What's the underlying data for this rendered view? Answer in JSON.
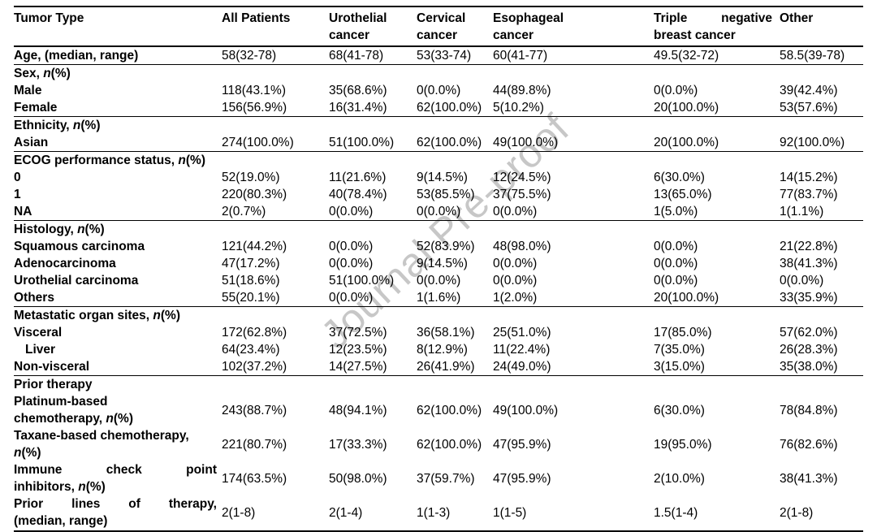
{
  "watermark": {
    "text": "Journal Pre-proof",
    "color": "#c7c7c7"
  },
  "table": {
    "columns": [
      {
        "label": "Tumor Type"
      },
      {
        "label": "All Patients"
      },
      {
        "label": "Urothelial\ncancer"
      },
      {
        "label": "Cervical\ncancer"
      },
      {
        "label": "Esophageal\ncancer"
      },
      {
        "label": "Triple negative\nbreast cancer",
        "justify": true
      },
      {
        "label": "Other"
      }
    ],
    "rows": [
      {
        "label": "Age, (median, range)",
        "values": [
          "58(32-78)",
          "68(41-78)",
          "53(33-74)",
          "60(41-77)",
          "49.5(32-72)",
          "58.5(39-78)"
        ],
        "rule_below": true
      },
      {
        "label": "Sex, n(%)",
        "section": true
      },
      {
        "label": "Male",
        "values": [
          "118(43.1%)",
          "35(68.6%)",
          "0(0.0%)",
          "44(89.8%)",
          "0(0.0%)",
          "39(42.4%)"
        ]
      },
      {
        "label": "Female",
        "values": [
          "156(56.9%)",
          "16(31.4%)",
          "62(100.0%)",
          "5(10.2%)",
          "20(100.0%)",
          "53(57.6%)"
        ],
        "rule_below": true
      },
      {
        "label": "Ethnicity, n(%)",
        "section": true
      },
      {
        "label": "Asian",
        "values": [
          "274(100.0%)",
          "51(100.0%)",
          "62(100.0%)",
          "49(100.0%)",
          "20(100.0%)",
          "92(100.0%)"
        ],
        "rule_below": true
      },
      {
        "label": "ECOG performance status, n(%)",
        "section": true
      },
      {
        "label": "0",
        "values": [
          "52(19.0%)",
          "11(21.6%)",
          "9(14.5%)",
          "12(24.5%)",
          "6(30.0%)",
          "14(15.2%)"
        ]
      },
      {
        "label": "1",
        "values": [
          "220(80.3%)",
          "40(78.4%)",
          "53(85.5%)",
          "37(75.5%)",
          "13(65.0%)",
          "77(83.7%)"
        ]
      },
      {
        "label": "NA",
        "values": [
          "2(0.7%)",
          "0(0.0%)",
          "0(0.0%)",
          "0(0.0%)",
          "1(5.0%)",
          "1(1.1%)"
        ],
        "rule_below": true
      },
      {
        "label": "Histology, n(%)",
        "section": true
      },
      {
        "label": "Squamous carcinoma",
        "values": [
          "121(44.2%)",
          "0(0.0%)",
          "52(83.9%)",
          "48(98.0%)",
          "0(0.0%)",
          "21(22.8%)"
        ]
      },
      {
        "label": "Adenocarcinoma",
        "values": [
          "47(17.2%)",
          "0(0.0%)",
          "9(14.5%)",
          "0(0.0%)",
          "0(0.0%)",
          "38(41.3%)"
        ]
      },
      {
        "label": "Urothelial carcinoma",
        "values": [
          "51(18.6%)",
          "51(100.0%)",
          "0(0.0%)",
          "0(0.0%)",
          "0(0.0%)",
          "0(0.0%)"
        ]
      },
      {
        "label": "Others",
        "values": [
          "55(20.1%)",
          "0(0.0%)",
          "1(1.6%)",
          "1(2.0%)",
          "20(100.0%)",
          "33(35.9%)"
        ],
        "rule_below": true
      },
      {
        "label": "Metastatic organ sites, n(%)",
        "section": true
      },
      {
        "label": "Visceral",
        "values": [
          "172(62.8%)",
          "37(72.5%)",
          "36(58.1%)",
          "25(51.0%)",
          "17(85.0%)",
          "57(62.0%)"
        ]
      },
      {
        "label": "Liver",
        "indent": true,
        "values": [
          "64(23.4%)",
          "12(23.5%)",
          "8(12.9%)",
          "11(22.4%)",
          "7(35.0%)",
          "26(28.3%)"
        ]
      },
      {
        "label": "Non-visceral",
        "values": [
          "102(37.2%)",
          "14(27.5%)",
          "26(41.9%)",
          "24(49.0%)",
          "3(15.0%)",
          "35(38.0%)"
        ],
        "rule_below": true
      },
      {
        "label": "Prior therapy",
        "section": true
      },
      {
        "label": "Platinum-based\nchemotherapy, n(%)",
        "values": [
          "243(88.7%)",
          "48(94.1%)",
          "62(100.0%)",
          "49(100.0%)",
          "6(30.0%)",
          "78(84.8%)"
        ]
      },
      {
        "label": "Taxane-based chemotherapy,\nn(%)",
        "values": [
          "221(80.7%)",
          "17(33.3%)",
          "62(100.0%)",
          "47(95.9%)",
          "19(95.0%)",
          "76(82.6%)"
        ]
      },
      {
        "label": "Immune check point\ninhibitors, n(%)",
        "justify": true,
        "values": [
          "174(63.5%)",
          "50(98.0%)",
          "37(59.7%)",
          "47(95.9%)",
          "2(10.0%)",
          "38(41.3%)"
        ]
      },
      {
        "label": "Prior lines of therapy,\n(median, range)",
        "justify": true,
        "values": [
          "2(1-8)",
          "2(1-4)",
          "1(1-3)",
          "1(1-5)",
          "1.5(1-4)",
          "2(1-8)"
        ]
      }
    ]
  }
}
